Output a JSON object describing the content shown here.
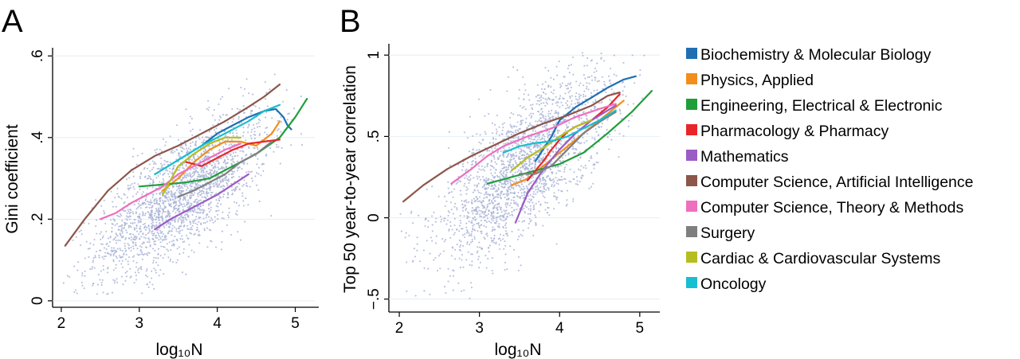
{
  "legend": [
    {
      "name": "Biochemistry & Molecular Biology",
      "color": "#1f6fb2"
    },
    {
      "name": "Physics, Applied",
      "color": "#f28e1c"
    },
    {
      "name": "Engineering, Electrical & Electronic",
      "color": "#1f9e3a"
    },
    {
      "name": "Pharmacology & Pharmacy",
      "color": "#e8262a"
    },
    {
      "name": "Mathematics",
      "color": "#9a5bc4"
    },
    {
      "name": "Computer Science, Artificial Intelligence",
      "color": "#8c564b"
    },
    {
      "name": "Computer Science, Theory & Methods",
      "color": "#ee6fc0"
    },
    {
      "name": "Surgery",
      "color": "#7f7f7f"
    },
    {
      "name": "Cardiac & Cardiovascular Systems",
      "color": "#b6bd1f"
    },
    {
      "name": "Oncology",
      "color": "#17becf"
    }
  ],
  "scatter_color": "#a9b4d6",
  "chart_data": [
    {
      "panel": "A",
      "type": "line",
      "xlabel": "log₁₀N",
      "ylabel": "Gini coefficient",
      "xlim": [
        1.95,
        5.25
      ],
      "ylim": [
        -0.01,
        0.62
      ],
      "xticks": [
        {
          "v": 2,
          "label": "2"
        },
        {
          "v": 3,
          "label": "3"
        },
        {
          "v": 4,
          "label": "4"
        },
        {
          "v": 5,
          "label": "5"
        }
      ],
      "yticks": [
        {
          "v": 0,
          "label": "0"
        },
        {
          "v": 0.2,
          "label": ".2"
        },
        {
          "v": 0.4,
          "label": ".4"
        },
        {
          "v": 0.6,
          "label": ".6"
        }
      ],
      "grid": "horizontal",
      "background_scatter": {
        "x_center": 3.55,
        "x_spread": 0.55,
        "y_intercept": -0.2,
        "y_slope": 0.13,
        "y_spread": 0.07
      },
      "series": [
        {
          "name": "Biochemistry & Molecular Biology",
          "x": [
            3.8,
            4.0,
            4.2,
            4.4,
            4.6,
            4.75,
            4.85,
            4.9,
            4.95
          ],
          "y": [
            0.38,
            0.41,
            0.43,
            0.45,
            0.465,
            0.47,
            0.45,
            0.43,
            0.42
          ]
        },
        {
          "name": "Physics, Applied",
          "x": [
            3.3,
            3.5,
            3.7,
            3.9,
            4.1,
            4.3,
            4.5,
            4.7,
            4.8
          ],
          "y": [
            0.27,
            0.3,
            0.34,
            0.37,
            0.39,
            0.39,
            0.38,
            0.41,
            0.44
          ]
        },
        {
          "name": "Engineering, Electrical & Electronic",
          "x": [
            3.0,
            3.3,
            3.6,
            3.9,
            4.2,
            4.5,
            4.8,
            5.0,
            5.15
          ],
          "y": [
            0.28,
            0.285,
            0.29,
            0.3,
            0.33,
            0.36,
            0.4,
            0.45,
            0.495
          ]
        },
        {
          "name": "Pharmacology & Pharmacy",
          "x": [
            3.6,
            3.8,
            4.0,
            4.2,
            4.4,
            4.6,
            4.8
          ],
          "y": [
            0.34,
            0.33,
            0.35,
            0.37,
            0.385,
            0.39,
            0.395
          ]
        },
        {
          "name": "Mathematics",
          "x": [
            3.2,
            3.4,
            3.6,
            3.8,
            4.0,
            4.2,
            4.4
          ],
          "y": [
            0.175,
            0.2,
            0.22,
            0.24,
            0.26,
            0.285,
            0.31
          ]
        },
        {
          "name": "Computer Science, Artificial Intelligence",
          "x": [
            2.05,
            2.3,
            2.6,
            2.9,
            3.2,
            3.5,
            3.8,
            4.1,
            4.4,
            4.6,
            4.8
          ],
          "y": [
            0.135,
            0.2,
            0.27,
            0.32,
            0.355,
            0.38,
            0.41,
            0.44,
            0.475,
            0.5,
            0.53
          ]
        },
        {
          "name": "Computer Science, Theory & Methods",
          "x": [
            2.5,
            2.7,
            2.9,
            3.1,
            3.3,
            3.5,
            3.7,
            3.9,
            4.1,
            4.3
          ],
          "y": [
            0.2,
            0.215,
            0.24,
            0.26,
            0.28,
            0.31,
            0.33,
            0.35,
            0.37,
            0.385
          ]
        },
        {
          "name": "Surgery",
          "x": [
            3.5,
            3.7,
            3.9,
            4.1,
            4.3,
            4.5,
            4.7
          ],
          "y": [
            0.255,
            0.27,
            0.29,
            0.31,
            0.34,
            0.36,
            0.39
          ]
        },
        {
          "name": "Cardiac & Cardiovascular Systems",
          "x": [
            3.3,
            3.5,
            3.7,
            3.9,
            4.1,
            4.3
          ],
          "y": [
            0.26,
            0.33,
            0.36,
            0.385,
            0.4,
            0.4
          ]
        },
        {
          "name": "Oncology",
          "x": [
            3.2,
            3.5,
            3.8,
            4.1,
            4.4,
            4.6,
            4.8
          ],
          "y": [
            0.31,
            0.345,
            0.38,
            0.41,
            0.44,
            0.465,
            0.48
          ]
        }
      ]
    },
    {
      "panel": "B",
      "type": "line",
      "xlabel": "log₁₀N",
      "ylabel": "Top 50 year-to-year correlation",
      "xlim": [
        1.9,
        5.25
      ],
      "ylim": [
        -0.55,
        1.05
      ],
      "xticks": [
        {
          "v": 2,
          "label": "2"
        },
        {
          "v": 3,
          "label": "3"
        },
        {
          "v": 4,
          "label": "4"
        },
        {
          "v": 5,
          "label": "5"
        }
      ],
      "yticks": [
        {
          "v": -0.5,
          "label": "−.5"
        },
        {
          "v": 0,
          "label": "0"
        },
        {
          "v": 0.5,
          "label": ".5"
        },
        {
          "v": 1,
          "label": "1"
        }
      ],
      "grid": "horizontal",
      "background_scatter": {
        "x_center": 3.55,
        "x_spread": 0.55,
        "y_intercept": -1.0,
        "y_slope": 0.37,
        "y_spread": 0.2
      },
      "series": [
        {
          "name": "Biochemistry & Molecular Biology",
          "x": [
            3.7,
            3.9,
            4.0,
            4.2,
            4.4,
            4.6,
            4.8,
            4.95
          ],
          "y": [
            0.35,
            0.5,
            0.6,
            0.68,
            0.74,
            0.8,
            0.85,
            0.87
          ]
        },
        {
          "name": "Physics, Applied",
          "x": [
            3.4,
            3.6,
            3.8,
            4.0,
            4.2,
            4.4,
            4.6,
            4.8
          ],
          "y": [
            0.2,
            0.24,
            0.32,
            0.4,
            0.48,
            0.56,
            0.64,
            0.72
          ]
        },
        {
          "name": "Engineering, Electrical & Electronic",
          "x": [
            3.1,
            3.4,
            3.7,
            4.0,
            4.3,
            4.6,
            4.9,
            5.15
          ],
          "y": [
            0.21,
            0.25,
            0.29,
            0.33,
            0.4,
            0.52,
            0.65,
            0.78
          ]
        },
        {
          "name": "Pharmacology & Pharmacy",
          "x": [
            3.6,
            3.8,
            3.9,
            4.0,
            4.1,
            4.2,
            4.4,
            4.6,
            4.75
          ],
          "y": [
            0.23,
            0.35,
            0.42,
            0.48,
            0.53,
            0.56,
            0.6,
            0.68,
            0.76
          ]
        },
        {
          "name": "Mathematics",
          "x": [
            3.45,
            3.6,
            3.8,
            4.0,
            4.2,
            4.4,
            4.6,
            4.7
          ],
          "y": [
            -0.03,
            0.15,
            0.3,
            0.42,
            0.52,
            0.6,
            0.66,
            0.69
          ]
        },
        {
          "name": "Computer Science, Artificial Intelligence",
          "x": [
            2.05,
            2.3,
            2.6,
            2.9,
            3.2,
            3.5,
            3.8,
            4.1,
            4.4,
            4.6,
            4.75
          ],
          "y": [
            0.1,
            0.2,
            0.3,
            0.38,
            0.45,
            0.52,
            0.58,
            0.63,
            0.69,
            0.75,
            0.77
          ]
        },
        {
          "name": "Computer Science, Theory & Methods",
          "x": [
            2.65,
            2.9,
            3.1,
            3.3,
            3.6,
            3.9,
            4.2,
            4.5,
            4.7
          ],
          "y": [
            0.21,
            0.3,
            0.38,
            0.44,
            0.5,
            0.55,
            0.62,
            0.67,
            0.7
          ]
        },
        {
          "name": "Surgery",
          "x": [
            3.5,
            3.7,
            3.9,
            4.1,
            4.3,
            4.5,
            4.7
          ],
          "y": [
            0.27,
            0.27,
            0.32,
            0.42,
            0.52,
            0.59,
            0.65
          ]
        },
        {
          "name": "Cardiac & Cardiovascular Systems",
          "x": [
            3.4,
            3.5,
            3.6,
            3.8,
            4.0,
            4.2,
            4.4
          ],
          "y": [
            0.29,
            0.33,
            0.37,
            0.43,
            0.5,
            0.56,
            0.6
          ]
        },
        {
          "name": "Oncology",
          "x": [
            3.3,
            3.5,
            3.7,
            3.9,
            4.1,
            4.3,
            4.5,
            4.7
          ],
          "y": [
            0.4,
            0.44,
            0.46,
            0.47,
            0.5,
            0.55,
            0.6,
            0.66
          ]
        }
      ]
    }
  ]
}
